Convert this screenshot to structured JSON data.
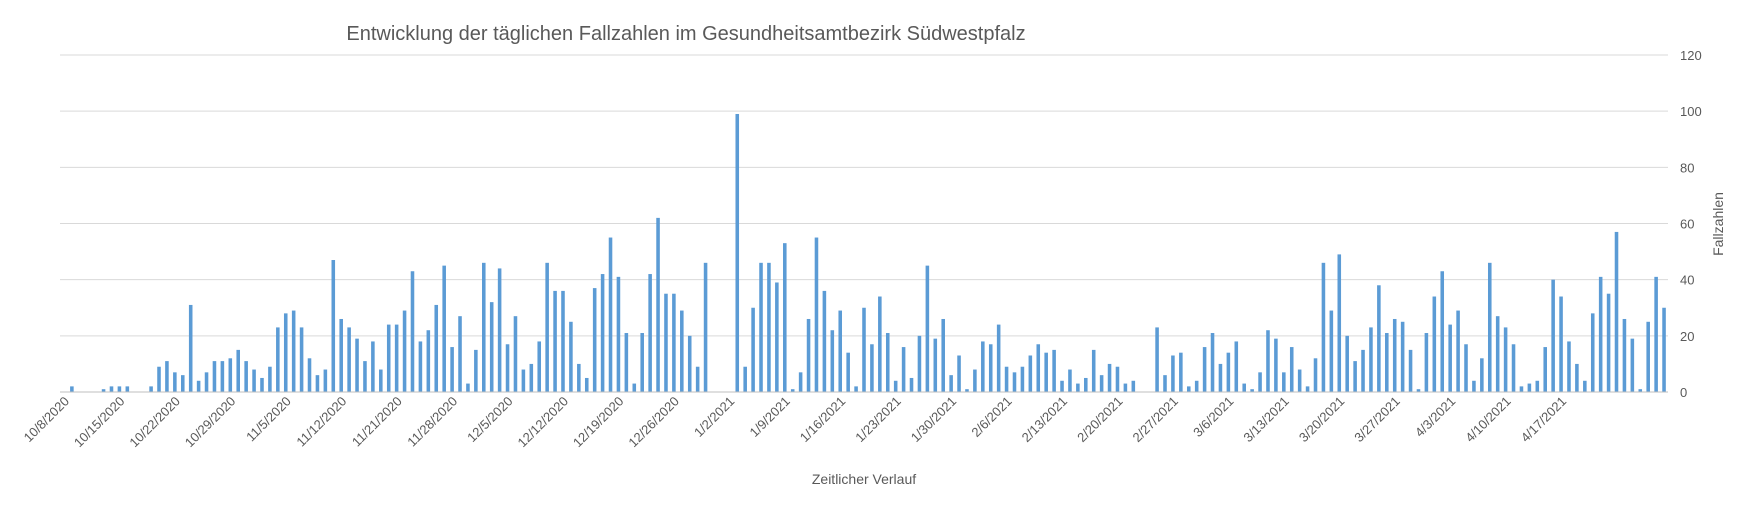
{
  "chart_data": {
    "type": "bar",
    "title": "Entwicklung der täglichen Fallzahlen im Gesundheitsamtbezirk Südwestpfalz",
    "xlabel": "Zeitlicher Verlauf",
    "ylabel": "Fallzahlen",
    "ylim": [
      0,
      120
    ],
    "y_ticks": [
      0,
      20,
      40,
      60,
      80,
      100,
      120
    ],
    "y_axis_position": "right",
    "grid": true,
    "x_tick_labels": [
      "10/8/2020",
      "10/15/2020",
      "10/22/2020",
      "10/29/2020",
      "11/5/2020",
      "11/12/2020",
      "11/21/2020",
      "11/28/2020",
      "12/5/2020",
      "12/12/2020",
      "12/19/2020",
      "12/26/2020",
      "1/2/2021",
      "1/9/2021",
      "1/16/2021",
      "1/23/2021",
      "1/30/2021",
      "2/6/2021",
      "2/13/2021",
      "2/20/2021",
      "2/27/2021",
      "3/6/2021",
      "3/13/2021",
      "3/20/2021",
      "3/27/2021",
      "4/3/2021",
      "4/10/2021",
      "4/17/2021"
    ],
    "color": "#5b9bd5",
    "values": [
      0,
      2,
      0,
      0,
      0,
      1,
      2,
      2,
      2,
      0,
      0,
      2,
      9,
      11,
      7,
      6,
      31,
      4,
      7,
      11,
      11,
      12,
      15,
      11,
      8,
      5,
      9,
      23,
      28,
      29,
      23,
      12,
      6,
      8,
      47,
      26,
      23,
      19,
      11,
      18,
      8,
      24,
      24,
      29,
      43,
      18,
      22,
      31,
      45,
      16,
      27,
      3,
      15,
      46,
      32,
      44,
      17,
      27,
      8,
      10,
      18,
      46,
      36,
      36,
      25,
      10,
      5,
      37,
      42,
      55,
      41,
      21,
      3,
      21,
      42,
      62,
      35,
      35,
      29,
      20,
      9,
      46,
      0,
      0,
      0,
      99,
      9,
      30,
      46,
      46,
      39,
      53,
      1,
      7,
      26,
      55,
      36,
      22,
      29,
      14,
      2,
      30,
      17,
      34,
      21,
      4,
      16,
      5,
      20,
      45,
      19,
      26,
      6,
      13,
      1,
      8,
      18,
      17,
      24,
      9,
      7,
      9,
      13,
      17,
      14,
      15,
      4,
      8,
      3,
      5,
      15,
      6,
      10,
      9,
      3,
      4,
      0,
      0,
      23,
      6,
      13,
      14,
      2,
      4,
      16,
      21,
      10,
      14,
      18,
      3,
      1,
      7,
      22,
      19,
      7,
      16,
      8,
      2,
      12,
      46,
      29,
      49,
      20,
      11,
      15,
      23,
      38,
      21,
      26,
      25,
      15,
      1,
      21,
      34,
      43,
      24,
      29,
      17,
      4,
      12,
      46,
      27,
      23,
      17,
      2,
      3,
      4,
      16,
      40,
      34,
      18,
      10,
      4,
      28,
      41,
      35,
      57,
      26,
      19,
      1,
      25,
      41,
      30
    ]
  }
}
